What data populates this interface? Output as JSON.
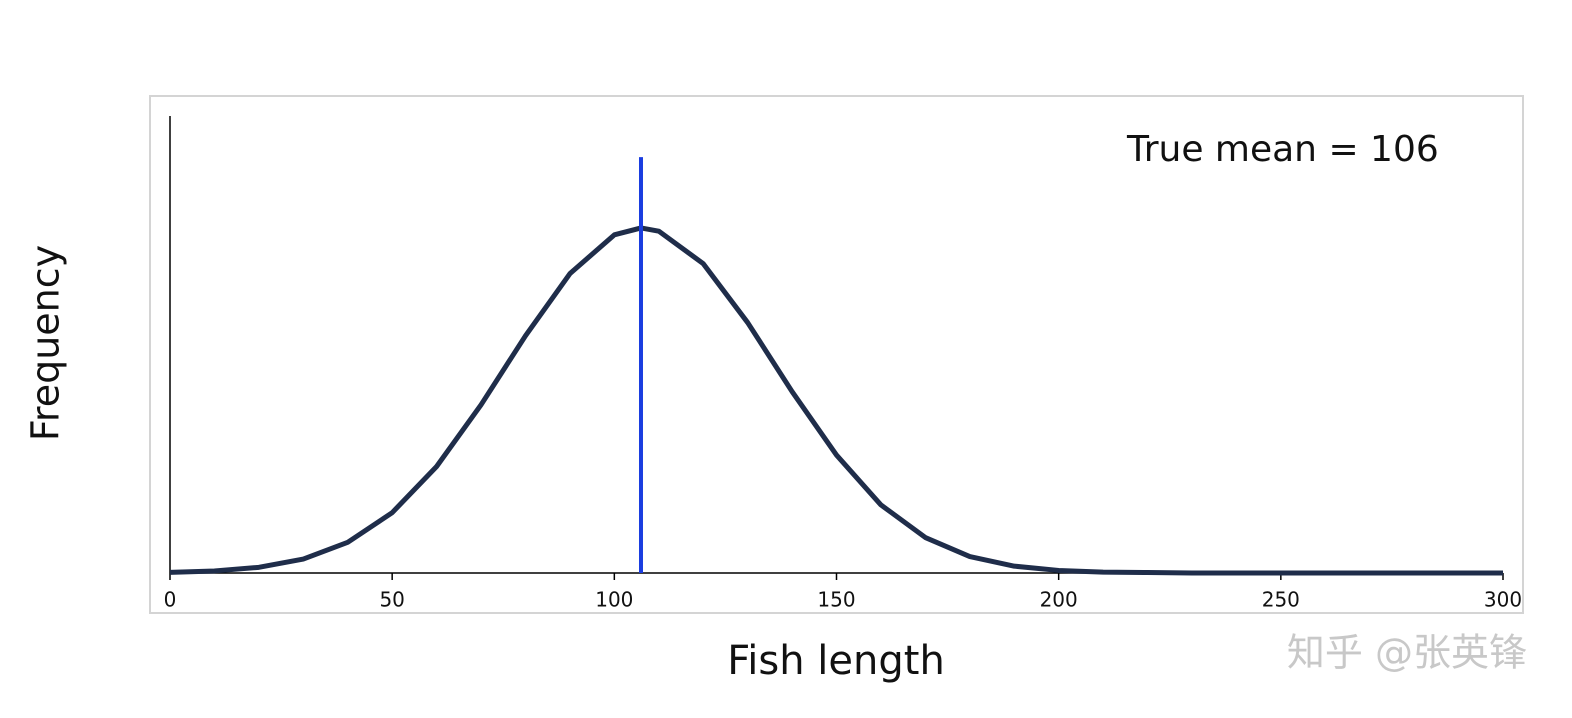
{
  "chart_data": {
    "type": "line",
    "xlabel": "Fish length",
    "ylabel": "Frequency",
    "annotation": "True mean = 106",
    "watermark": "知乎 @张英锋",
    "x": [
      0,
      10,
      20,
      30,
      40,
      50,
      60,
      70,
      80,
      90,
      100,
      106,
      110,
      120,
      130,
      140,
      150,
      160,
      170,
      180,
      190,
      200,
      210,
      220,
      230,
      240,
      250,
      260,
      270,
      280,
      290,
      300
    ],
    "series": [
      {
        "color": "#1f2d4a",
        "values": [
          0.0015,
          0.0045,
          0.0124,
          0.0305,
          0.0671,
          0.132,
          0.233,
          0.368,
          0.519,
          0.655,
          0.74,
          0.755,
          0.748,
          0.677,
          0.548,
          0.397,
          0.258,
          0.149,
          0.0776,
          0.036,
          0.015,
          0.0056,
          0.002,
          0.001,
          0,
          0,
          0,
          0,
          0,
          0,
          0,
          0
        ]
      }
    ],
    "mean_line": {
      "x": 106,
      "color": "#1a3de0"
    },
    "xlim": [
      0,
      300
    ],
    "ylim": [
      0,
      1
    ],
    "xticks": [
      0,
      50,
      100,
      150,
      200,
      250,
      300
    ]
  }
}
